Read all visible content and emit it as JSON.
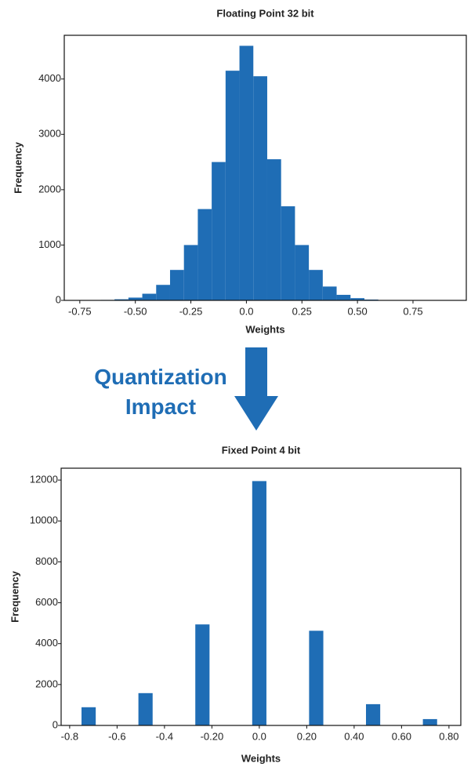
{
  "chart_data": [
    {
      "type": "histogram",
      "title": "Floating Point 32 bit",
      "x_label": "Weights",
      "y_label": "Frequency",
      "color": "#1f6db5",
      "bins": [
        -0.78125,
        -0.71875,
        -0.65625,
        -0.59375,
        -0.53125,
        -0.46875,
        -0.40625,
        -0.34375,
        -0.28125,
        -0.21875,
        -0.15625,
        -0.09375,
        -0.03125,
        0.03125,
        0.09375,
        0.15625,
        0.21875,
        0.28125,
        0.34375,
        0.40625,
        0.46875,
        0.53125,
        0.59375,
        0.65625,
        0.71875,
        0.78125
      ],
      "counts": [
        1,
        3,
        8,
        20,
        50,
        120,
        280,
        550,
        1000,
        1650,
        2500,
        4150,
        4600,
        4050,
        2550,
        1700,
        1000,
        550,
        250,
        100,
        40,
        15,
        5,
        2,
        1
      ],
      "xlim": [
        -0.82,
        0.99
      ],
      "ylim": [
        0,
        4790
      ],
      "xticks": [
        -0.75,
        {
          "value": -0.5,
          "label": "-0.50"
        },
        -0.25,
        {
          "value": 0,
          "label": "0.0"
        },
        0.25,
        {
          "value": 0.5,
          "label": "0.50"
        },
        0.75
      ],
      "yticks": [
        0,
        1000,
        2000,
        3000,
        4000
      ],
      "annotation": "Quantization Impact"
    },
    {
      "type": "histogram",
      "title": "Fixed Point 4 bit",
      "x_label": "Weights",
      "y_label": "Frequency",
      "color": "#1f6db5",
      "bins": [
        -0.75,
        -0.69,
        -0.63,
        -0.57,
        -0.51,
        -0.45,
        -0.39,
        -0.33,
        -0.27,
        -0.21,
        -0.15,
        -0.09,
        -0.03,
        0.03,
        0.09,
        0.15,
        0.21,
        0.27,
        0.33,
        0.39,
        0.45,
        0.51,
        0.57,
        0.63,
        0.69,
        0.75
      ],
      "counts": [
        890,
        0,
        0,
        0,
        1580,
        0,
        0,
        0,
        4940,
        0,
        0,
        0,
        11950,
        0,
        0,
        0,
        4630,
        0,
        0,
        0,
        1040,
        0,
        0,
        0,
        310
      ],
      "xlim": [
        -0.836,
        0.85
      ],
      "ylim": [
        0,
        12580
      ],
      "xticks": [
        -0.8,
        -0.6,
        -0.4,
        {
          "value": -0.2,
          "label": "-0.20"
        },
        {
          "value": 0,
          "label": "0.0"
        },
        {
          "value": 0.2,
          "label": "0.20"
        },
        {
          "value": 0.4,
          "label": "0.40"
        },
        {
          "value": 0.6,
          "label": "0.60"
        },
        {
          "value": 0.8,
          "label": "0.80"
        }
      ],
      "yticks": [
        0,
        2000,
        4000,
        6000,
        8000,
        10000,
        12000
      ]
    }
  ]
}
